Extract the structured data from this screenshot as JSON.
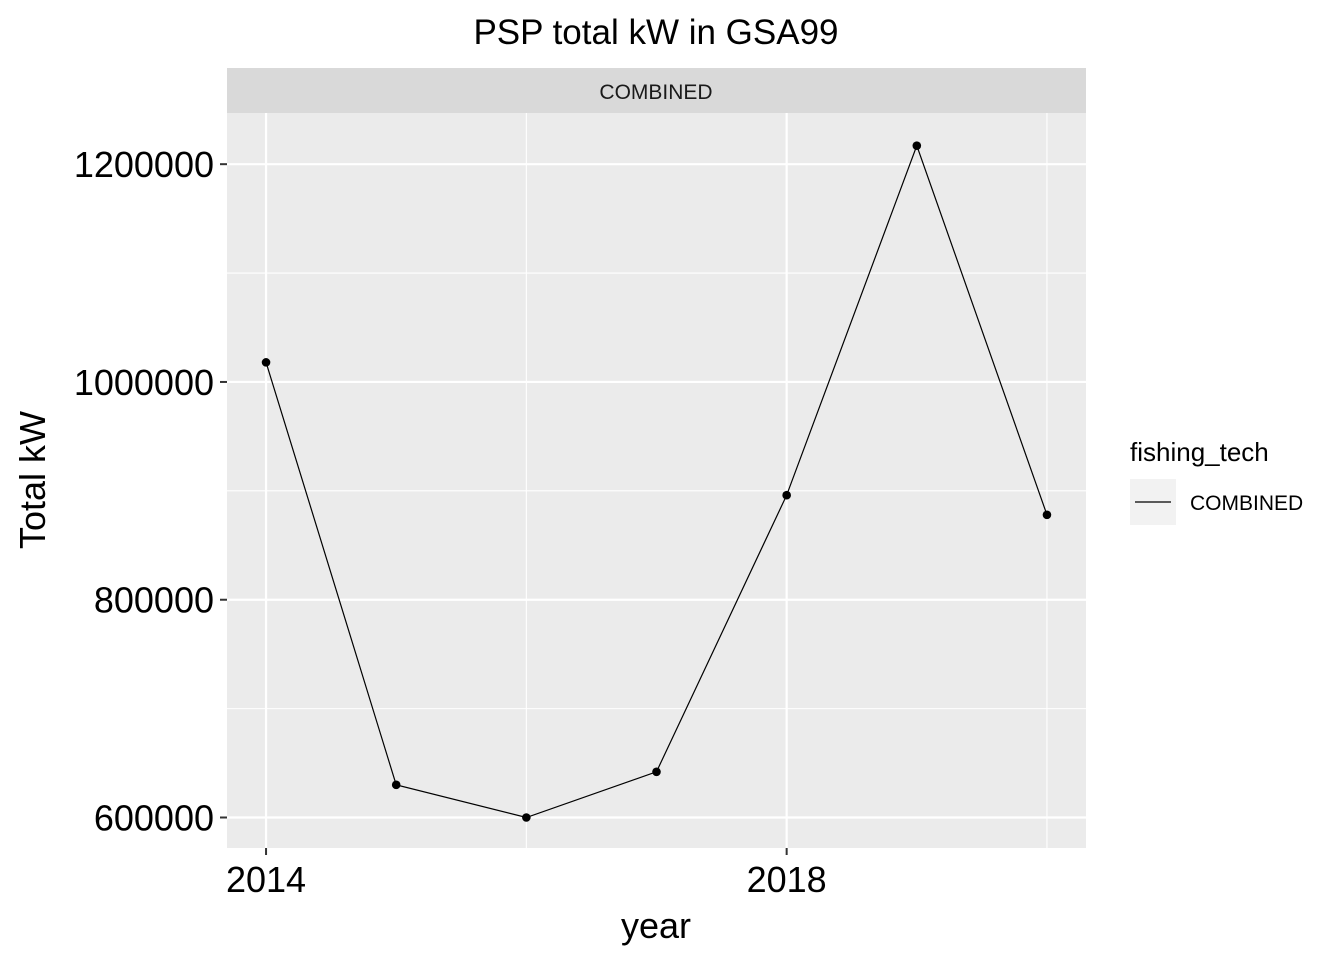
{
  "chart_data": {
    "type": "line",
    "title": "PSP total kW in GSA99",
    "facet_label": "COMBINED",
    "xlabel": "year",
    "ylabel": "Total kW",
    "x": [
      2014,
      2015,
      2016,
      2017,
      2018,
      2019,
      2020
    ],
    "series": [
      {
        "name": "COMBINED",
        "values": [
          1018000,
          630000,
          600000,
          642000,
          896000,
          1217000,
          878000
        ]
      }
    ],
    "xlim": [
      2013.7,
      2020.3
    ],
    "ylim": [
      572000,
      1247000
    ],
    "x_ticks": [
      2014,
      2018
    ],
    "x_tick_labels": [
      "2014",
      "2018"
    ],
    "x_minor_ticks": [
      2016,
      2020
    ],
    "y_ticks": [
      600000,
      800000,
      1000000,
      1200000
    ],
    "y_tick_labels": [
      "600000",
      "800000",
      "1000000",
      "1200000"
    ],
    "y_minor_ticks": [
      700000,
      900000,
      1100000
    ],
    "legend": {
      "title": "fishing_tech",
      "placement": "right",
      "entries": [
        "COMBINED"
      ]
    },
    "grid": true,
    "colors": {
      "panel_background": "#ebebeb",
      "grid": "#ffffff",
      "strip_background": "#d9d9d9",
      "line": "#000000",
      "legend_key_background": "#f2f2f2"
    }
  }
}
